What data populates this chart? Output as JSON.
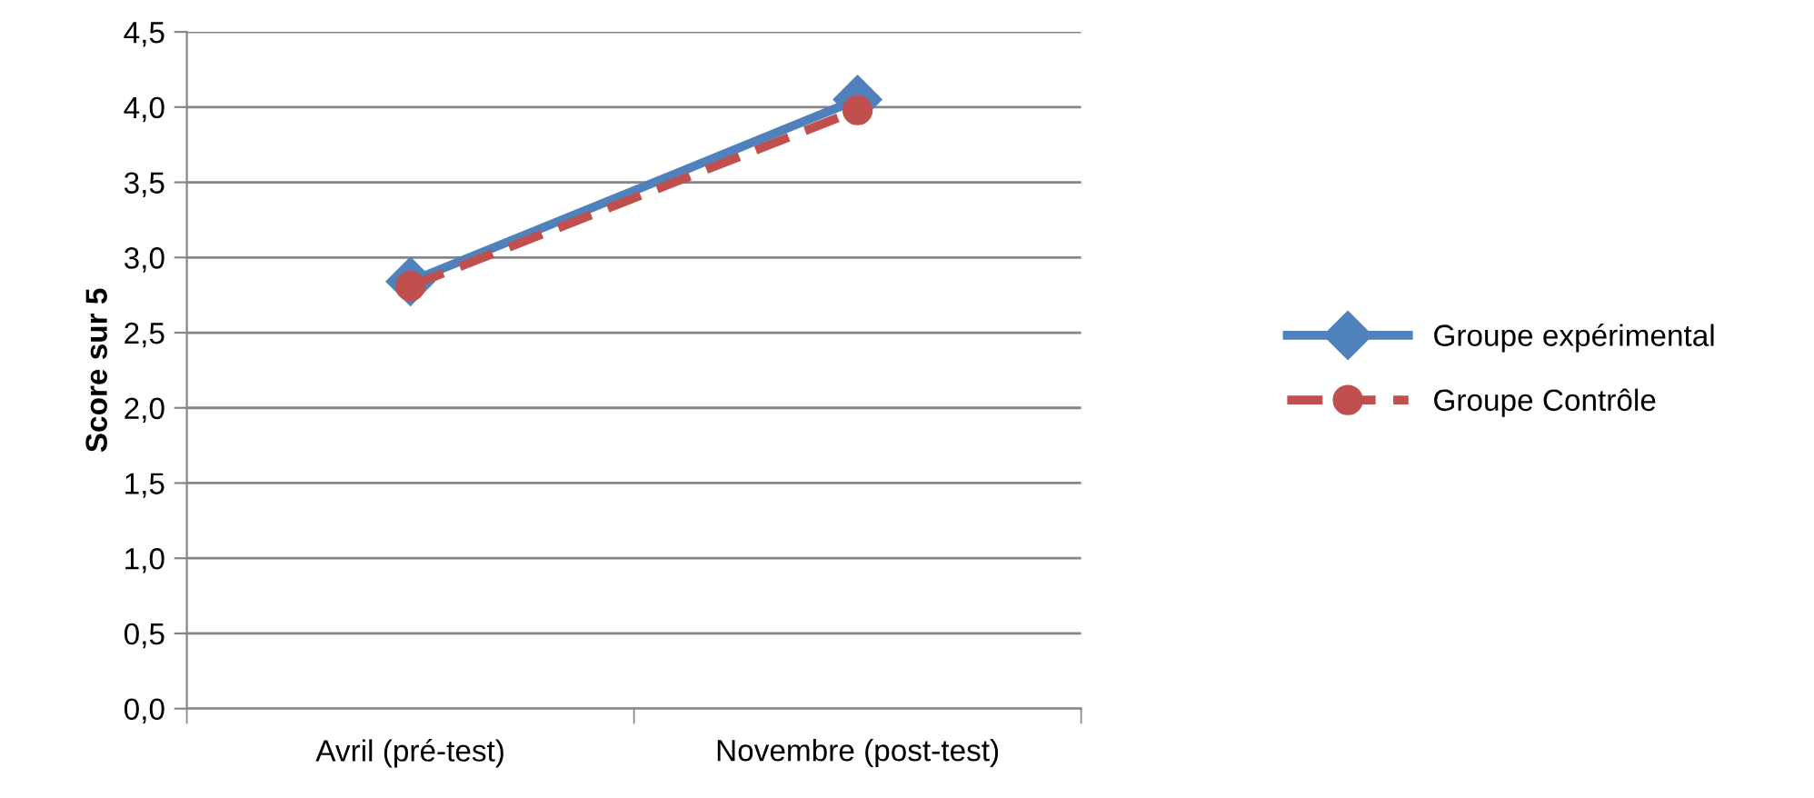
{
  "chart_data": {
    "type": "line",
    "ylabel": "Score sur 5",
    "categories": [
      "Avril (pré-test)",
      "Novembre (post-test)"
    ],
    "series": [
      {
        "name": "Groupe expérimental",
        "color": "#4f81bd",
        "values": [
          2.84,
          4.05
        ],
        "marker": "diamond",
        "line_style": "solid"
      },
      {
        "name": "Groupe Contrôle",
        "color": "#c0504d",
        "values": [
          2.81,
          3.98
        ],
        "marker": "circle",
        "line_style": "dashed"
      }
    ],
    "ylim": [
      0,
      4.5
    ],
    "yticks": [
      {
        "value": 0,
        "label": "0,0"
      },
      {
        "value": 0.5,
        "label": "0,5"
      },
      {
        "value": 1,
        "label": "1,0"
      },
      {
        "value": 1.5,
        "label": "1,5"
      },
      {
        "value": 2,
        "label": "2,0"
      },
      {
        "value": 2.5,
        "label": "2,5"
      },
      {
        "value": 3,
        "label": "3,0"
      },
      {
        "value": 3.5,
        "label": "3,5"
      },
      {
        "value": 4,
        "label": "4,0"
      },
      {
        "value": 4.5,
        "label": "4,5"
      }
    ],
    "grid": "y",
    "legend": "right"
  }
}
